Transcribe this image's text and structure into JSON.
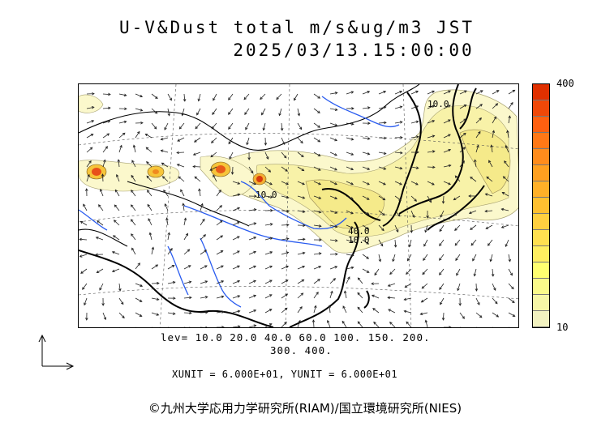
{
  "title_line1": "U-V&Dust total m/s&ug/m3 JST",
  "title_line2": "2025/03/13.15:00:00",
  "colorbar": {
    "max_label": "400",
    "min_label": "10",
    "colors": [
      "#f2f2c0",
      "#f6f6a6",
      "#fafa8a",
      "#ffff70",
      "#ffef60",
      "#ffe050",
      "#ffd040",
      "#ffc030",
      "#ffb028",
      "#ffa020",
      "#ff8c1c",
      "#ff7816",
      "#ff6010",
      "#f04808",
      "#e03000"
    ]
  },
  "legend": {
    "levels_line1": "lev= 10.0 20.0 40.0 60.0 100. 150. 200.",
    "levels_line2": "300. 400."
  },
  "units_text": "XUNIT = 6.000E+01, YUNIT = 6.000E+01",
  "contour_labels": [
    "40.0",
    "10.0",
    "10.0",
    "10.0"
  ],
  "copyright": "©九州大学応用力学研究所(RIAM)/国立環境研究所(NIES)"
}
